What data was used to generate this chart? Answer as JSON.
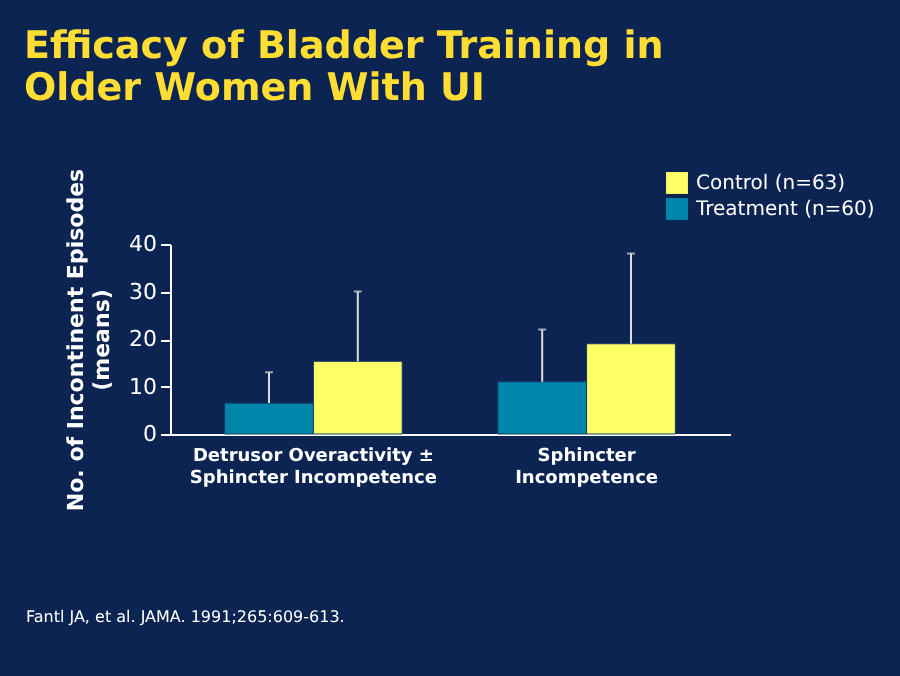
{
  "chart_data": {
    "type": "bar",
    "title": "Efficacy of Bladder Training in\nOlder Women With UI",
    "categories": [
      "Detrusor Overactivity ±\nSphincter Incompetence",
      "Sphincter\nIncompetence"
    ],
    "series": [
      {
        "name": "Treatment (n=60)",
        "color": "#0086aa",
        "values": [
          6.5,
          11
        ],
        "errors": [
          [
            6.5,
            13
          ],
          [
            11,
            22
          ]
        ]
      },
      {
        "name": "Control (n=63)",
        "color": "#ffff66",
        "values": [
          15.3,
          19
        ],
        "errors": [
          [
            15.3,
            30
          ],
          [
            19,
            38
          ]
        ]
      }
    ],
    "ylabel": "No. of Incontinent Episodes\n(means)",
    "ylim": [
      0,
      40
    ],
    "yticks": [
      0,
      10,
      20,
      30,
      40
    ],
    "grid": false,
    "legend": "top right",
    "annotations": [
      "Fantl JA, et al. JAMA. 1991;265:609-613."
    ]
  }
}
